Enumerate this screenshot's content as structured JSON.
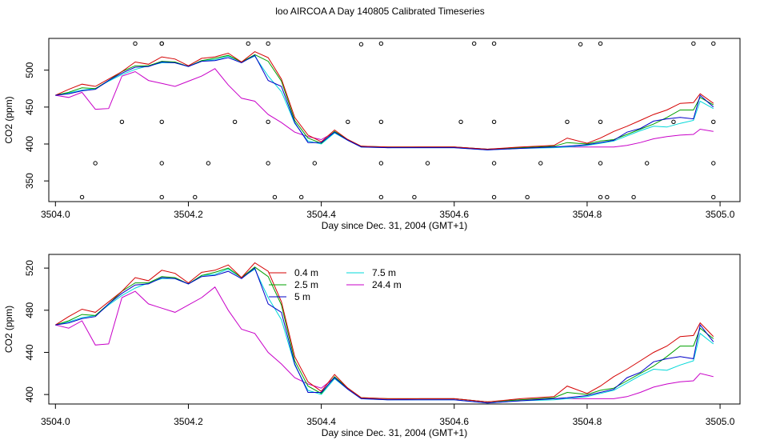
{
  "title": "loo AIRCOA A  Day 140805  Calibrated Timeseries",
  "colors": {
    "0.4 m": "#d40000",
    "2.5 m": "#00a000",
    "5 m": "#0000c8",
    "7.5 m": "#00d8d8",
    "24.4 m": "#c800c8",
    "scatter": "#000000"
  },
  "chart_data": [
    {
      "type": "line",
      "title": "loo AIRCOA A  Day 140805  Calibrated Timeseries",
      "xlabel": "Day since Dec. 31, 2004 (GMT+1)",
      "ylabel": "CO2 (ppm)",
      "xlim": [
        3503.99,
        3505.03
      ],
      "ylim": [
        322,
        543
      ],
      "xticks": [
        "3504.0",
        "3504.2",
        "3504.4",
        "3504.6",
        "3504.8",
        "3505.0"
      ],
      "yticks": [
        "350",
        "400",
        "450",
        "500"
      ],
      "grid": false,
      "legend": "none",
      "series": [
        {
          "key": "0.4 m",
          "x": [
            3504.0,
            3504.02,
            3504.04,
            3504.06,
            3504.08,
            3504.1,
            3504.12,
            3504.14,
            3504.16,
            3504.18,
            3504.2,
            3504.22,
            3504.24,
            3504.26,
            3504.28,
            3504.3,
            3504.32,
            3504.34,
            3504.36,
            3504.38,
            3504.4,
            3504.42,
            3504.44,
            3504.46,
            3504.5,
            3504.55,
            3504.6,
            3504.65,
            3504.7,
            3504.75,
            3504.77,
            3504.8,
            3504.82,
            3504.84,
            3504.86,
            3504.88,
            3504.9,
            3504.92,
            3504.94,
            3504.96,
            3504.97,
            3504.99
          ],
          "values": [
            466,
            474,
            481,
            478,
            488,
            498,
            511,
            508,
            518,
            515,
            506,
            516,
            518,
            523,
            511,
            525,
            517,
            488,
            436,
            412,
            403,
            419,
            406,
            397,
            396,
            396,
            396,
            393,
            396,
            398,
            408,
            401,
            408,
            417,
            424,
            432,
            440,
            446,
            455,
            456,
            468,
            455
          ]
        },
        {
          "key": "2.5 m",
          "x": [
            3504.0,
            3504.02,
            3504.04,
            3504.06,
            3504.08,
            3504.1,
            3504.12,
            3504.14,
            3504.16,
            3504.18,
            3504.2,
            3504.22,
            3504.24,
            3504.26,
            3504.28,
            3504.3,
            3504.32,
            3504.34,
            3504.36,
            3504.38,
            3504.4,
            3504.42,
            3504.44,
            3504.46,
            3504.5,
            3504.55,
            3504.6,
            3504.65,
            3504.7,
            3504.75,
            3504.77,
            3504.8,
            3504.82,
            3504.84,
            3504.86,
            3504.88,
            3504.9,
            3504.92,
            3504.94,
            3504.96,
            3504.97,
            3504.99
          ],
          "values": [
            466,
            470,
            476,
            475,
            486,
            498,
            506,
            506,
            512,
            511,
            505,
            513,
            516,
            520,
            511,
            521,
            512,
            485,
            432,
            408,
            401,
            417,
            406,
            397,
            396,
            396,
            396,
            393,
            395,
            397,
            402,
            400,
            404,
            406,
            413,
            420,
            427,
            436,
            446,
            446,
            463,
            453
          ]
        },
        {
          "key": "5 m",
          "x": [
            3504.0,
            3504.02,
            3504.04,
            3504.06,
            3504.08,
            3504.1,
            3504.12,
            3504.14,
            3504.16,
            3504.18,
            3504.2,
            3504.22,
            3504.24,
            3504.26,
            3504.28,
            3504.3,
            3504.32,
            3504.34,
            3504.36,
            3504.38,
            3504.4,
            3504.42,
            3504.44,
            3504.46,
            3504.5,
            3504.55,
            3504.6,
            3504.65,
            3504.7,
            3504.75,
            3504.77,
            3504.8,
            3504.82,
            3504.84,
            3504.86,
            3504.88,
            3504.9,
            3504.92,
            3504.94,
            3504.96,
            3504.97,
            3504.99
          ],
          "values": [
            466,
            468,
            472,
            474,
            486,
            496,
            504,
            505,
            511,
            510,
            505,
            512,
            513,
            517,
            510,
            520,
            486,
            478,
            429,
            402,
            402,
            416,
            405,
            396,
            395,
            395,
            395,
            392,
            394,
            396,
            397,
            399,
            402,
            405,
            416,
            421,
            431,
            434,
            436,
            434,
            466,
            450
          ]
        },
        {
          "key": "7.5 m",
          "x": [
            3504.0,
            3504.02,
            3504.04,
            3504.06,
            3504.08,
            3504.1,
            3504.12,
            3504.14,
            3504.16,
            3504.18,
            3504.2,
            3504.22,
            3504.24,
            3504.26,
            3504.28,
            3504.3,
            3504.32,
            3504.34,
            3504.36,
            3504.38,
            3504.4,
            3504.42,
            3504.44,
            3504.46,
            3504.5,
            3504.55,
            3504.6,
            3504.65,
            3504.7,
            3504.75,
            3504.77,
            3504.8,
            3504.82,
            3504.84,
            3504.86,
            3504.88,
            3504.9,
            3504.92,
            3504.94,
            3504.96,
            3504.97,
            3504.99
          ],
          "values": [
            466,
            469,
            473,
            475,
            485,
            494,
            501,
            506,
            510,
            510,
            505,
            513,
            514,
            519,
            511,
            519,
            492,
            471,
            428,
            404,
            400,
            415,
            405,
            396,
            395,
            395,
            395,
            392,
            394,
            395,
            396,
            398,
            401,
            404,
            411,
            418,
            424,
            423,
            428,
            432,
            458,
            448
          ]
        },
        {
          "key": "24.4 m",
          "x": [
            3504.0,
            3504.02,
            3504.04,
            3504.06,
            3504.08,
            3504.1,
            3504.12,
            3504.14,
            3504.16,
            3504.18,
            3504.2,
            3504.22,
            3504.24,
            3504.26,
            3504.28,
            3504.3,
            3504.32,
            3504.34,
            3504.36,
            3504.38,
            3504.4,
            3504.42,
            3504.44,
            3504.46,
            3504.5,
            3504.55,
            3504.6,
            3504.65,
            3504.7,
            3504.75,
            3504.77,
            3504.8,
            3504.82,
            3504.84,
            3504.86,
            3504.88,
            3504.9,
            3504.92,
            3504.94,
            3504.96,
            3504.97,
            3504.99
          ],
          "values": [
            466,
            463,
            470,
            447,
            448,
            492,
            498,
            486,
            482,
            478,
            485,
            492,
            502,
            480,
            462,
            458,
            440,
            429,
            416,
            410,
            406,
            416,
            406,
            397,
            395,
            396,
            396,
            393,
            395,
            396,
            396,
            396,
            396,
            396,
            398,
            402,
            407,
            410,
            412,
            413,
            420,
            417
          ]
        },
        {
          "key": "scatter",
          "type": "scatter",
          "x": [
            3504.04,
            3504.06,
            3504.1,
            3504.12,
            3504.16,
            3504.16,
            3504.16,
            3504.16,
            3504.16,
            3504.21,
            3504.23,
            3504.27,
            3504.29,
            3504.32,
            3504.32,
            3504.32,
            3504.33,
            3504.37,
            3504.39,
            3504.44,
            3504.46,
            3504.49,
            3504.49,
            3504.49,
            3504.49,
            3504.54,
            3504.56,
            3504.61,
            3504.63,
            3504.66,
            3504.66,
            3504.66,
            3504.66,
            3504.71,
            3504.73,
            3504.77,
            3504.79,
            3504.82,
            3504.82,
            3504.82,
            3504.82,
            3504.83,
            3504.87,
            3504.89,
            3504.93,
            3504.96,
            3504.99,
            3504.99,
            3504.99,
            3504.99
          ],
          "values": [
            328,
            374,
            430,
            536,
            536,
            430,
            374,
            328,
            536,
            328,
            374,
            430,
            536,
            536,
            430,
            374,
            328,
            328,
            374,
            430,
            535,
            536,
            430,
            374,
            328,
            328,
            374,
            430,
            536,
            536,
            430,
            374,
            328,
            328,
            374,
            430,
            535,
            536,
            430,
            374,
            328,
            328,
            328,
            374,
            430,
            536,
            536,
            430,
            374,
            328
          ]
        }
      ]
    },
    {
      "type": "line",
      "xlabel": "Day since Dec. 31, 2004 (GMT+1)",
      "ylabel": "CO2 (ppm)",
      "xlim": [
        3503.99,
        3505.03
      ],
      "ylim": [
        391,
        533
      ],
      "xticks": [
        "3504.0",
        "3504.2",
        "3504.4",
        "3504.6",
        "3504.8",
        "3505.0"
      ],
      "yticks": [
        "400",
        "440",
        "480",
        "520"
      ],
      "grid": false,
      "legend": "top-center",
      "legend_labels": [
        "0.4 m",
        "2.5 m",
        "5 m",
        "7.5 m",
        "24.4 m"
      ]
    }
  ]
}
